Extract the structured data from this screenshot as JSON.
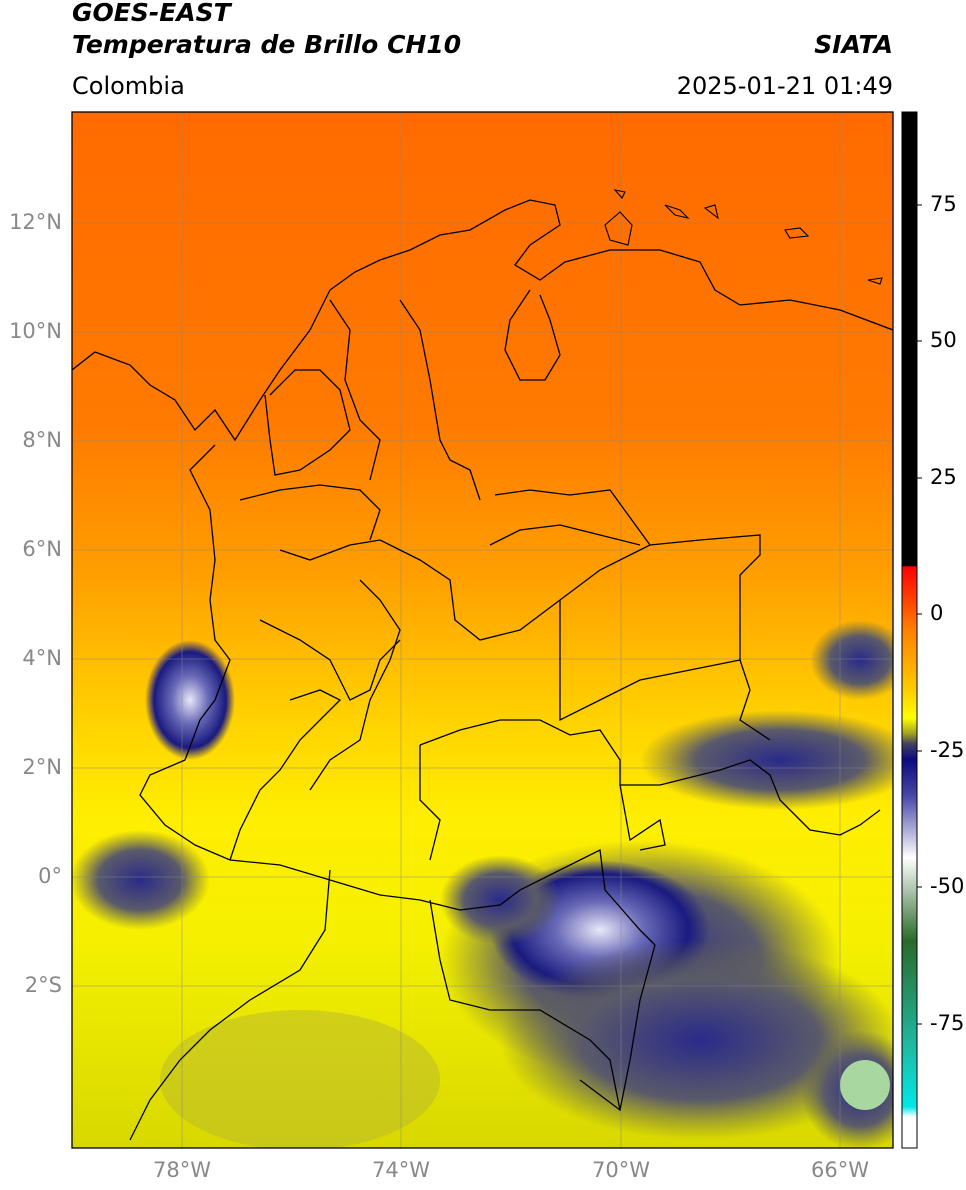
{
  "header": {
    "satellite": "GOES-EAST",
    "product": "Temperatura de Brillo CH10",
    "institution": "SIATA",
    "region": "Colombia",
    "datetime": "2025-01-21 01:49"
  },
  "axes": {
    "lat_labels": [
      "12°N",
      "10°N",
      "8°N",
      "6°N",
      "4°N",
      "2°N",
      "0°",
      "2°S"
    ],
    "lon_labels": [
      "78°W",
      "74°W",
      "70°W",
      "66°W"
    ]
  },
  "colorbar": {
    "ticks": [
      "75",
      "50",
      "25",
      "0",
      "-25",
      "-50",
      "-75"
    ],
    "colors": {
      "top": "#000000",
      "red": "#ff0000",
      "orange": "#ff8000",
      "yellow": "#ffff00",
      "olive": "#8a8a2a",
      "navy": "#0a0a80",
      "white": "#ffffff",
      "green": "#3a8a2a",
      "teal": "#20c8b8",
      "cyan": "#00e8e8"
    }
  }
}
